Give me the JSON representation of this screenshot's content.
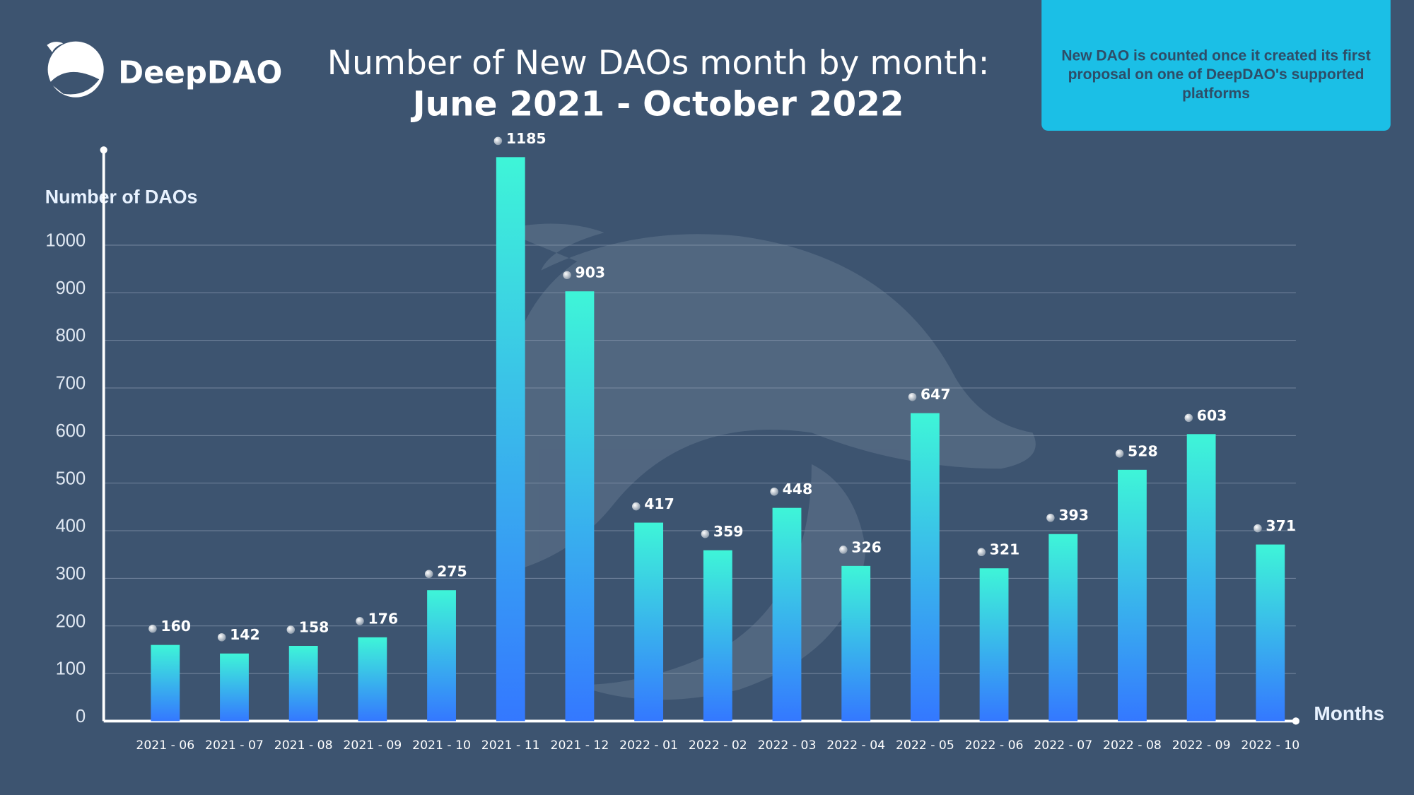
{
  "brand": "DeepDAO",
  "note": "New DAO is counted once it created its first proposal on one of DeepDAO's supported platforms",
  "chart_data": {
    "type": "bar",
    "title": "Number of New DAOs month by month:",
    "subtitle": "June 2021 - October 2022",
    "y_label": "Number of DAOs",
    "x_label": "Months",
    "categories": [
      "2021 - 06",
      "2021 - 07",
      "2021 - 08",
      "2021 - 09",
      "2021 - 10",
      "2021 - 11",
      "2021 - 12",
      "2022 - 01",
      "2022 - 02",
      "2022 - 03",
      "2022 - 04",
      "2022 - 05",
      "2022 - 06",
      "2022 - 07",
      "2022 - 08",
      "2022 - 09",
      "2022 - 10"
    ],
    "values": [
      160,
      142,
      158,
      176,
      275,
      1185,
      903,
      417,
      359,
      448,
      326,
      647,
      321,
      393,
      528,
      603,
      371
    ],
    "color_top": "#3ef5d8",
    "color_bottom": "#3478ff",
    "ylim": [
      0,
      1200
    ],
    "yticks": [
      0,
      100,
      200,
      300,
      400,
      500,
      600,
      700,
      800,
      900,
      1000
    ],
    "grid": true
  }
}
